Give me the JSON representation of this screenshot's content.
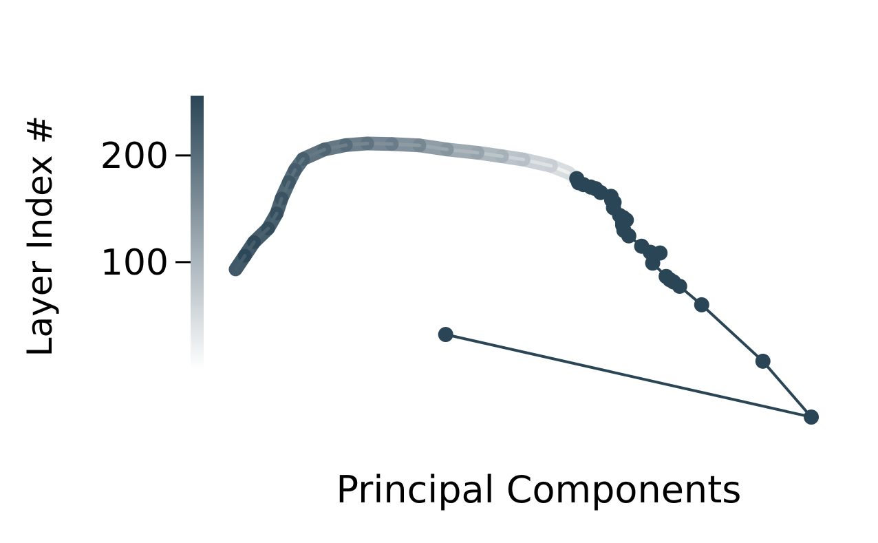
{
  "chart_data": {
    "type": "line",
    "title": "",
    "xlabel": "Principal Components",
    "ylabel": "",
    "colorbar": {
      "label": "Layer Index #",
      "ticks": [
        100,
        200
      ],
      "tick_labels": [
        "100",
        "200"
      ],
      "range": [
        0,
        256
      ],
      "color_low": "#ffffff",
      "color_high": "#2a4556"
    },
    "color": "#2a4556",
    "xlim": [
      0,
      100
    ],
    "ylim": [
      0,
      100
    ],
    "axes_visible": false,
    "grid": false,
    "series": [
      {
        "points": [
          {
            "layer": 0,
            "x": 34.8,
            "y": 36.1
          },
          {
            "layer": 1,
            "x": 94.5,
            "y": 5.8
          },
          {
            "layer": 2,
            "x": 86.6,
            "y": 26.3
          },
          {
            "layer": 3,
            "x": 76.6,
            "y": 47.0
          },
          {
            "layer": 4,
            "x": 73.0,
            "y": 53.8
          },
          {
            "layer": 5,
            "x": 72.0,
            "y": 55.4
          },
          {
            "layer": 6,
            "x": 71.4,
            "y": 56.2
          },
          {
            "layer": 7,
            "x": 70.8,
            "y": 57.4
          },
          {
            "layer": 8,
            "x": 68.6,
            "y": 62.3
          },
          {
            "layer": 9,
            "x": 69.8,
            "y": 66.0
          },
          {
            "layer": 10,
            "x": 68.2,
            "y": 66.3
          },
          {
            "layer": 11,
            "x": 66.8,
            "y": 68.5
          },
          {
            "layer": 12,
            "x": 64.7,
            "y": 72.3
          },
          {
            "layer": 13,
            "x": 63.9,
            "y": 74.3
          },
          {
            "layer": 14,
            "x": 63.7,
            "y": 76.2
          },
          {
            "layer": 15,
            "x": 63.7,
            "y": 77.0
          },
          {
            "layer": 16,
            "x": 64.3,
            "y": 78.1
          },
          {
            "layer": 17,
            "x": 63.8,
            "y": 79.0
          },
          {
            "layer": 18,
            "x": 63.2,
            "y": 79.8
          },
          {
            "layer": 19,
            "x": 62.2,
            "y": 82.6
          },
          {
            "layer": 20,
            "x": 62.3,
            "y": 84.6
          },
          {
            "layer": 21,
            "x": 61.9,
            "y": 85.4
          },
          {
            "layer": 22,
            "x": 61.8,
            "y": 86.8
          },
          {
            "layer": 23,
            "x": 60.1,
            "y": 88.2
          },
          {
            "layer": 24,
            "x": 59.3,
            "y": 89.6
          },
          {
            "layer": 25,
            "x": 58.5,
            "y": 90.2
          },
          {
            "layer": 26,
            "x": 57.3,
            "y": 91.1
          },
          {
            "layer": 27,
            "x": 56.5,
            "y": 91.8
          },
          {
            "layer": 28,
            "x": 56.2,
            "y": 93.3
          }
        ],
        "tail_note": "",
        "tail": [
          {
            "layer": 40,
            "x": 54.8,
            "y": 95.5
          },
          {
            "layer": 60,
            "x": 52.0,
            "y": 98.0
          },
          {
            "layer": 80,
            "x": 47.5,
            "y": 100.3
          },
          {
            "layer": 100,
            "x": 44.0,
            "y": 101.5
          },
          {
            "layer": 120,
            "x": 40.0,
            "y": 102.8
          },
          {
            "layer": 140,
            "x": 35.0,
            "y": 104.0
          },
          {
            "layer": 160,
            "x": 30.5,
            "y": 105.5
          },
          {
            "layer": 175,
            "x": 26.0,
            "y": 106.0
          },
          {
            "layer": 190,
            "x": 22.0,
            "y": 106.2
          },
          {
            "layer": 200,
            "x": 18.5,
            "y": 105.6
          },
          {
            "layer": 210,
            "x": 15.0,
            "y": 104.0
          },
          {
            "layer": 220,
            "x": 11.5,
            "y": 100.5
          },
          {
            "layer": 225,
            "x": 10.2,
            "y": 96.5
          },
          {
            "layer": 230,
            "x": 9.2,
            "y": 92.0
          },
          {
            "layer": 236,
            "x": 8.0,
            "y": 86.0
          },
          {
            "layer": 242,
            "x": 7.2,
            "y": 80.5
          },
          {
            "layer": 246,
            "x": 5.8,
            "y": 75.0
          },
          {
            "layer": 250,
            "x": 3.5,
            "y": 70.0
          },
          {
            "layer": 254,
            "x": 2.0,
            "y": 65.0
          },
          {
            "layer": 256,
            "x": 0.5,
            "y": 60.0
          }
        ]
      }
    ]
  }
}
